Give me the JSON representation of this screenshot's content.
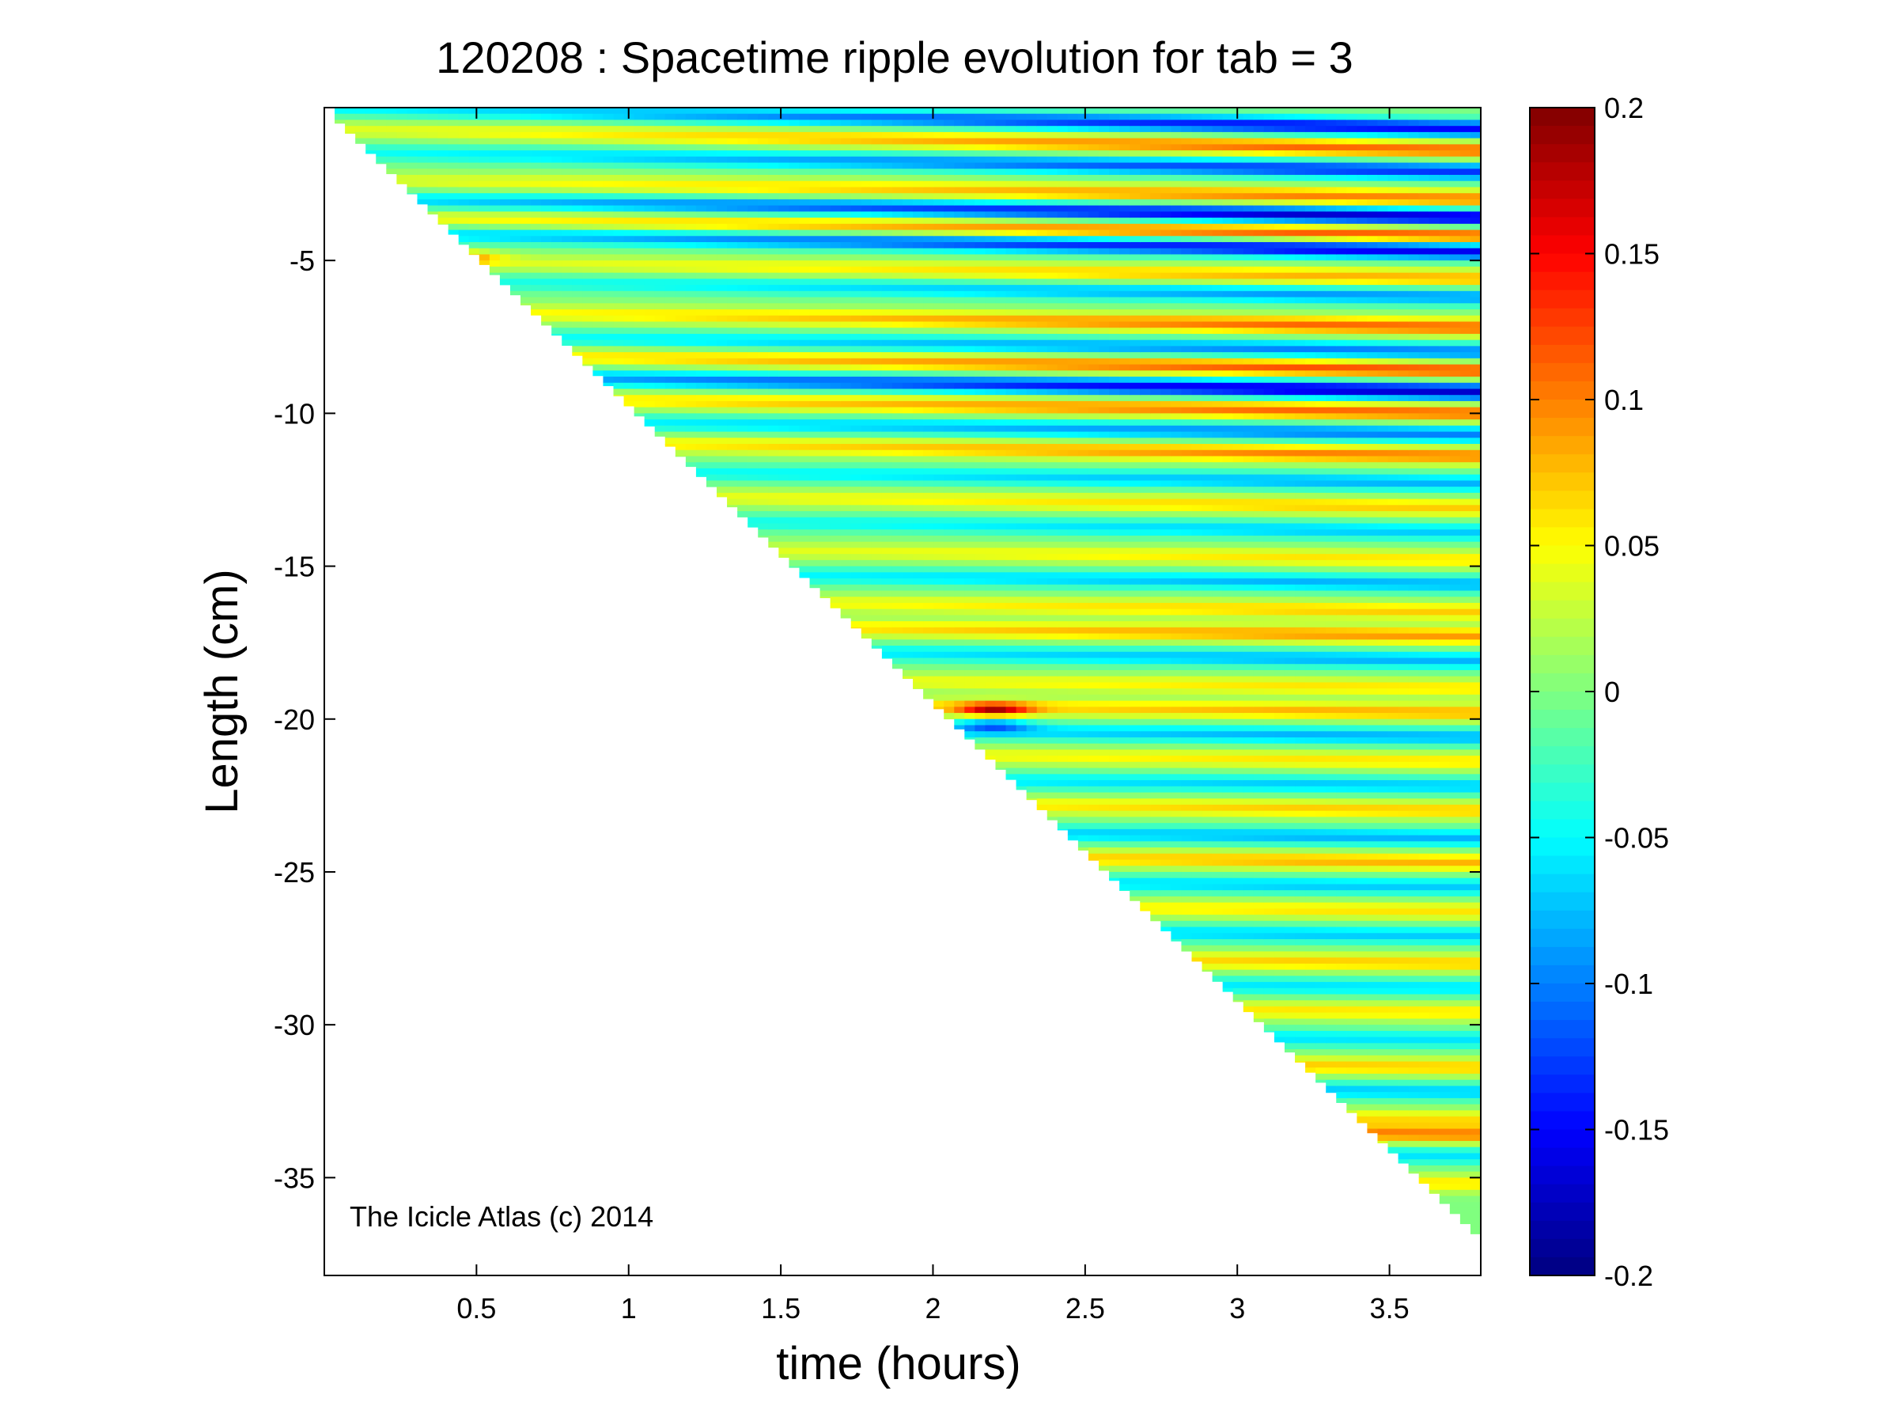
{
  "chart_data": {
    "type": "heatmap",
    "title": "120208 : Spacetime ripple evolution for tab = 3",
    "xlabel": "time (hours)",
    "ylabel": "Length (cm)",
    "xlim": [
      0.0,
      3.8
    ],
    "ylim": [
      -38.2,
      0.0
    ],
    "x_ticks": [
      0.5,
      1,
      1.5,
      2,
      2.5,
      3,
      3.5
    ],
    "x_tick_labels": [
      "0.5",
      "1",
      "1.5",
      "2",
      "2.5",
      "3",
      "3.5"
    ],
    "y_ticks": [
      -5,
      -10,
      -15,
      -20,
      -25,
      -30,
      -35
    ],
    "y_tick_labels": [
      "-5",
      "-10",
      "-15",
      "-20",
      "-25",
      "-30",
      "-35"
    ],
    "colormap": "jet",
    "clim": [
      -0.2,
      0.2
    ],
    "colorbar_ticks": [
      0.2,
      0.15,
      0.1,
      0.05,
      0,
      -0.05,
      -0.1,
      -0.15,
      -0.2
    ],
    "colorbar_tick_labels": [
      "0.2",
      "0.15",
      "0.1",
      "0.05",
      "0",
      "-0.05",
      "-0.1",
      "-0.15",
      "-0.2"
    ],
    "annotation": "The Icicle Atlas (c) 2014",
    "grid": false,
    "data_region": "lower-left triangle blank; icicle tip length grows from about -0.5 cm at t=0.05 h to about -37 cm at t=3.8 h",
    "ripple_bands": [
      {
        "y_at_end": -0.7,
        "slope_cm_per_h": 0.18,
        "amplitude": -0.15
      },
      {
        "y_at_end": -1.4,
        "slope_cm_per_h": 0.18,
        "amplitude": 0.11
      },
      {
        "y_at_end": -2.1,
        "slope_cm_per_h": 0.17,
        "amplitude": -0.13
      },
      {
        "y_at_end": -3.0,
        "slope_cm_per_h": 0.17,
        "amplitude": 0.1
      },
      {
        "y_at_end": -3.6,
        "slope_cm_per_h": 0.16,
        "amplitude": -0.17
      },
      {
        "y_at_end": -4.2,
        "slope_cm_per_h": 0.16,
        "amplitude": 0.12
      },
      {
        "y_at_end": -4.7,
        "slope_cm_per_h": 0.16,
        "amplitude": -0.16
      },
      {
        "y_at_end": -5.6,
        "slope_cm_per_h": 0.16,
        "amplitude": 0.08
      },
      {
        "y_at_end": -6.2,
        "slope_cm_per_h": 0.15,
        "amplitude": -0.09
      },
      {
        "y_at_end": -7.2,
        "slope_cm_per_h": 0.15,
        "amplitude": 0.11
      },
      {
        "y_at_end": -8.0,
        "slope_cm_per_h": 0.15,
        "amplitude": -0.1
      },
      {
        "y_at_end": -8.6,
        "slope_cm_per_h": 0.15,
        "amplitude": 0.12
      },
      {
        "y_at_end": -9.3,
        "slope_cm_per_h": 0.15,
        "amplitude": -0.17
      },
      {
        "y_at_end": -10.0,
        "slope_cm_per_h": 0.15,
        "amplitude": 0.11
      },
      {
        "y_at_end": -10.7,
        "slope_cm_per_h": 0.14,
        "amplitude": -0.1
      },
      {
        "y_at_end": -11.4,
        "slope_cm_per_h": 0.14,
        "amplitude": 0.1
      },
      {
        "y_at_end": -12.3,
        "slope_cm_per_h": 0.14,
        "amplitude": -0.08
      },
      {
        "y_at_end": -13.1,
        "slope_cm_per_h": 0.14,
        "amplitude": 0.07
      },
      {
        "y_at_end": -13.9,
        "slope_cm_per_h": 0.14,
        "amplitude": -0.07
      },
      {
        "y_at_end": -14.8,
        "slope_cm_per_h": 0.13,
        "amplitude": 0.06
      },
      {
        "y_at_end": -15.6,
        "slope_cm_per_h": 0.13,
        "amplitude": -0.08
      },
      {
        "y_at_end": -16.5,
        "slope_cm_per_h": 0.13,
        "amplitude": 0.07
      },
      {
        "y_at_end": -17.3,
        "slope_cm_per_h": 0.13,
        "amplitude": 0.09
      },
      {
        "y_at_end": -18.1,
        "slope_cm_per_h": 0.13,
        "amplitude": -0.08
      },
      {
        "y_at_end": -19.0,
        "slope_cm_per_h": 0.12,
        "amplitude": 0.06
      },
      {
        "y_at_end": -19.8,
        "slope_cm_per_h": 0.12,
        "amplitude": 0.08
      },
      {
        "y_at_end": -20.6,
        "slope_cm_per_h": 0.12,
        "amplitude": -0.08
      },
      {
        "y_at_end": -21.4,
        "slope_cm_per_h": 0.12,
        "amplitude": 0.06
      },
      {
        "y_at_end": -22.2,
        "slope_cm_per_h": 0.11,
        "amplitude": -0.07
      },
      {
        "y_at_end": -23.0,
        "slope_cm_per_h": 0.11,
        "amplitude": 0.07
      },
      {
        "y_at_end": -23.9,
        "slope_cm_per_h": 0.11,
        "amplitude": -0.08
      },
      {
        "y_at_end": -24.7,
        "slope_cm_per_h": 0.11,
        "amplitude": 0.08
      },
      {
        "y_at_end": -25.5,
        "slope_cm_per_h": 0.1,
        "amplitude": -0.07
      },
      {
        "y_at_end": -26.3,
        "slope_cm_per_h": 0.1,
        "amplitude": 0.06
      },
      {
        "y_at_end": -27.1,
        "slope_cm_per_h": 0.1,
        "amplitude": -0.07
      },
      {
        "y_at_end": -28.0,
        "slope_cm_per_h": 0.1,
        "amplitude": 0.07
      },
      {
        "y_at_end": -28.8,
        "slope_cm_per_h": 0.1,
        "amplitude": -0.06
      },
      {
        "y_at_end": -29.6,
        "slope_cm_per_h": 0.1,
        "amplitude": 0.06
      },
      {
        "y_at_end": -30.5,
        "slope_cm_per_h": 0.1,
        "amplitude": -0.06
      },
      {
        "y_at_end": -31.4,
        "slope_cm_per_h": 0.1,
        "amplitude": 0.07
      },
      {
        "y_at_end": -32.2,
        "slope_cm_per_h": 0.1,
        "amplitude": -0.07
      },
      {
        "y_at_end": -33.1,
        "slope_cm_per_h": 0.1,
        "amplitude": 0.06
      },
      {
        "y_at_end": -33.6,
        "slope_cm_per_h": 0.1,
        "amplitude": 0.1
      },
      {
        "y_at_end": -34.3,
        "slope_cm_per_h": 0.1,
        "amplitude": -0.06
      },
      {
        "y_at_end": -35.2,
        "slope_cm_per_h": 0.1,
        "amplitude": 0.06
      }
    ],
    "local_features": [
      {
        "t": 2.2,
        "y": -19.7,
        "amplitude": 0.13
      },
      {
        "t": 2.2,
        "y": -20.2,
        "amplitude": -0.08
      },
      {
        "t": 0.45,
        "y": -4.9,
        "amplitude": 0.08
      }
    ]
  }
}
